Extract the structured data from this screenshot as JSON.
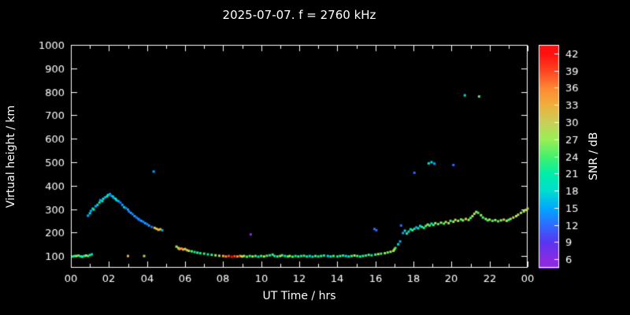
{
  "chart_data": {
    "type": "scatter",
    "title": "2025-07-07. f = 2760 kHz",
    "xlabel": "UT Time / hrs",
    "ylabel": "Virtual height / km",
    "xlim": [
      0,
      24
    ],
    "ylim": [
      50,
      1000
    ],
    "x_tick_values": [
      0,
      2,
      4,
      6,
      8,
      10,
      12,
      14,
      16,
      18,
      20,
      22,
      24
    ],
    "x_tick_labels": [
      "00",
      "02",
      "04",
      "06",
      "08",
      "10",
      "12",
      "14",
      "16",
      "18",
      "20",
      "22",
      "00"
    ],
    "y_ticks": [
      100,
      200,
      300,
      400,
      500,
      600,
      700,
      800,
      900,
      1000
    ],
    "grid": false,
    "legend": "none",
    "bg": "#000000",
    "fg": "#ffffff",
    "colorbar": {
      "label": "SNR / dB",
      "ticks": [
        6,
        9,
        12,
        15,
        18,
        21,
        24,
        27,
        30,
        33,
        36,
        39,
        42
      ],
      "range": [
        4.5,
        43.5
      ],
      "stops": [
        [
          6,
          "#8a2be2"
        ],
        [
          9,
          "#5a35f2"
        ],
        [
          12,
          "#2e6bff"
        ],
        [
          15,
          "#00a8ff"
        ],
        [
          18,
          "#00ddd0"
        ],
        [
          21,
          "#00eeaa"
        ],
        [
          24,
          "#44f06a"
        ],
        [
          27,
          "#9aef55"
        ],
        [
          30,
          "#c9cf5a"
        ],
        [
          33,
          "#efb03c"
        ],
        [
          36,
          "#ff8833"
        ],
        [
          39,
          "#ff4422"
        ],
        [
          42,
          "#ff1010"
        ]
      ]
    },
    "points_format": "[ut_hours, virtual_height_km, snr_db]",
    "points": [
      [
        0.1,
        98,
        21
      ],
      [
        0.2,
        100,
        24
      ],
      [
        0.3,
        100,
        27
      ],
      [
        0.4,
        102,
        24
      ],
      [
        0.5,
        99,
        21
      ],
      [
        0.6,
        97,
        24
      ],
      [
        0.7,
        100,
        21
      ],
      [
        0.8,
        102,
        27
      ],
      [
        0.9,
        100,
        24
      ],
      [
        1.0,
        104,
        21
      ],
      [
        1.1,
        107,
        18
      ],
      [
        0.9,
        272,
        15
      ],
      [
        1.0,
        282,
        18
      ],
      [
        1.05,
        292,
        15
      ],
      [
        1.15,
        302,
        18
      ],
      [
        1.2,
        298,
        21
      ],
      [
        1.3,
        312,
        15
      ],
      [
        1.4,
        318,
        18
      ],
      [
        1.5,
        328,
        21
      ],
      [
        1.55,
        338,
        15
      ],
      [
        1.65,
        334,
        18
      ],
      [
        1.7,
        344,
        21
      ],
      [
        1.8,
        350,
        15
      ],
      [
        1.9,
        354,
        18
      ],
      [
        1.95,
        360,
        21
      ],
      [
        2.05,
        364,
        15
      ],
      [
        2.1,
        358,
        12
      ],
      [
        2.2,
        354,
        18
      ],
      [
        2.25,
        348,
        15
      ],
      [
        2.35,
        344,
        21
      ],
      [
        2.4,
        338,
        18
      ],
      [
        2.5,
        334,
        15
      ],
      [
        2.6,
        328,
        12
      ],
      [
        2.7,
        318,
        15
      ],
      [
        2.8,
        308,
        18
      ],
      [
        2.9,
        304,
        12
      ],
      [
        3.0,
        298,
        15
      ],
      [
        3.05,
        290,
        12
      ],
      [
        3.15,
        284,
        15
      ],
      [
        3.25,
        278,
        12
      ],
      [
        3.35,
        270,
        15
      ],
      [
        3.45,
        264,
        12
      ],
      [
        3.55,
        258,
        15
      ],
      [
        3.6,
        254,
        12
      ],
      [
        3.7,
        250,
        15
      ],
      [
        3.8,
        246,
        12
      ],
      [
        3.9,
        240,
        15
      ],
      [
        4.0,
        236,
        12
      ],
      [
        4.1,
        230,
        15
      ],
      [
        4.25,
        224,
        12
      ],
      [
        4.4,
        220,
        30
      ],
      [
        4.5,
        216,
        33
      ],
      [
        4.6,
        212,
        30
      ],
      [
        4.7,
        214,
        33
      ],
      [
        4.8,
        210,
        15
      ],
      [
        4.35,
        460,
        15
      ],
      [
        3.0,
        100,
        33
      ],
      [
        3.85,
        100,
        30
      ],
      [
        5.55,
        140,
        27
      ],
      [
        5.65,
        134,
        30
      ],
      [
        5.7,
        130,
        33
      ],
      [
        5.8,
        132,
        36
      ],
      [
        5.9,
        128,
        33
      ],
      [
        6.0,
        130,
        30
      ],
      [
        6.1,
        125,
        33
      ],
      [
        6.2,
        122,
        27
      ],
      [
        6.35,
        120,
        24
      ],
      [
        6.5,
        117,
        21
      ],
      [
        6.65,
        114,
        24
      ],
      [
        6.8,
        112,
        21
      ],
      [
        7.0,
        110,
        24
      ],
      [
        7.2,
        107,
        21
      ],
      [
        7.4,
        105,
        24
      ],
      [
        7.6,
        103,
        27
      ],
      [
        7.8,
        101,
        30
      ],
      [
        8.0,
        100,
        33
      ],
      [
        8.15,
        98,
        36
      ],
      [
        8.3,
        100,
        39
      ],
      [
        8.45,
        97,
        42
      ],
      [
        8.6,
        99,
        39
      ],
      [
        8.75,
        98,
        36
      ],
      [
        8.9,
        100,
        33
      ],
      [
        9.0,
        98,
        30
      ],
      [
        9.1,
        100,
        27
      ],
      [
        9.25,
        97,
        24
      ],
      [
        9.4,
        100,
        24
      ],
      [
        9.45,
        192,
        6
      ],
      [
        9.55,
        98,
        27
      ],
      [
        9.7,
        100,
        24
      ],
      [
        9.85,
        97,
        21
      ],
      [
        10.0,
        100,
        24
      ],
      [
        10.15,
        98,
        27
      ],
      [
        10.3,
        101,
        24
      ],
      [
        10.45,
        103,
        21
      ],
      [
        10.6,
        106,
        24
      ],
      [
        10.7,
        100,
        21
      ],
      [
        10.85,
        98,
        24
      ],
      [
        11.0,
        100,
        27
      ],
      [
        11.1,
        103,
        24
      ],
      [
        11.25,
        100,
        21
      ],
      [
        11.4,
        98,
        24
      ],
      [
        11.5,
        100,
        27
      ],
      [
        11.65,
        97,
        24
      ],
      [
        11.8,
        100,
        21
      ],
      [
        11.95,
        98,
        24
      ],
      [
        12.1,
        100,
        21
      ],
      [
        12.25,
        101,
        24
      ],
      [
        12.4,
        98,
        21
      ],
      [
        12.55,
        100,
        18
      ],
      [
        12.7,
        97,
        21
      ],
      [
        12.85,
        100,
        24
      ],
      [
        13.0,
        98,
        21
      ],
      [
        13.15,
        100,
        24
      ],
      [
        13.3,
        102,
        21
      ],
      [
        13.5,
        100,
        18
      ],
      [
        13.65,
        98,
        21
      ],
      [
        13.8,
        100,
        24
      ],
      [
        14.0,
        98,
        21
      ],
      [
        14.15,
        100,
        24
      ],
      [
        14.3,
        102,
        21
      ],
      [
        14.45,
        100,
        18
      ],
      [
        14.6,
        98,
        21
      ],
      [
        14.75,
        100,
        24
      ],
      [
        14.9,
        102,
        27
      ],
      [
        15.05,
        100,
        24
      ],
      [
        15.2,
        98,
        21
      ],
      [
        15.35,
        100,
        24
      ],
      [
        15.5,
        102,
        21
      ],
      [
        15.65,
        105,
        24
      ],
      [
        15.8,
        103,
        21
      ],
      [
        15.95,
        215,
        12
      ],
      [
        16.05,
        210,
        12
      ],
      [
        16.0,
        106,
        24
      ],
      [
        16.15,
        108,
        27
      ],
      [
        16.3,
        110,
        24
      ],
      [
        16.5,
        112,
        27
      ],
      [
        16.65,
        115,
        24
      ],
      [
        16.8,
        118,
        27
      ],
      [
        16.95,
        122,
        30
      ],
      [
        17.0,
        128,
        27
      ],
      [
        17.05,
        134,
        24
      ],
      [
        17.2,
        150,
        18
      ],
      [
        17.3,
        162,
        15
      ],
      [
        17.35,
        230,
        12
      ],
      [
        17.45,
        198,
        15
      ],
      [
        17.55,
        208,
        18
      ],
      [
        17.65,
        196,
        21
      ],
      [
        17.75,
        204,
        18
      ],
      [
        17.85,
        214,
        21
      ],
      [
        17.95,
        210,
        24
      ],
      [
        18.05,
        455,
        12
      ],
      [
        18.05,
        216,
        18
      ],
      [
        18.15,
        222,
        15
      ],
      [
        18.25,
        218,
        21
      ],
      [
        18.35,
        228,
        18
      ],
      [
        18.45,
        224,
        24
      ],
      [
        18.55,
        220,
        21
      ],
      [
        18.65,
        228,
        24
      ],
      [
        18.75,
        234,
        27
      ],
      [
        18.8,
        495,
        18
      ],
      [
        18.85,
        230,
        24
      ],
      [
        18.95,
        500,
        18
      ],
      [
        18.95,
        238,
        21
      ],
      [
        19.05,
        232,
        24
      ],
      [
        19.1,
        494,
        15
      ],
      [
        19.15,
        240,
        27
      ],
      [
        19.3,
        236,
        24
      ],
      [
        19.45,
        242,
        27
      ],
      [
        19.6,
        238,
        24
      ],
      [
        19.7,
        245,
        30
      ],
      [
        19.85,
        240,
        27
      ],
      [
        19.95,
        250,
        24
      ],
      [
        20.1,
        488,
        12
      ],
      [
        20.1,
        246,
        27
      ],
      [
        20.2,
        254,
        30
      ],
      [
        20.35,
        250,
        27
      ],
      [
        20.5,
        256,
        24
      ],
      [
        20.6,
        252,
        27
      ],
      [
        20.7,
        785,
        18
      ],
      [
        20.75,
        258,
        30
      ],
      [
        20.9,
        254,
        27
      ],
      [
        21.0,
        262,
        24
      ],
      [
        21.1,
        270,
        27
      ],
      [
        21.2,
        280,
        30
      ],
      [
        21.3,
        288,
        27
      ],
      [
        21.4,
        284,
        24
      ],
      [
        21.45,
        780,
        24
      ],
      [
        21.55,
        274,
        27
      ],
      [
        21.65,
        264,
        24
      ],
      [
        21.8,
        258,
        27
      ],
      [
        21.9,
        252,
        24
      ],
      [
        22.0,
        255,
        27
      ],
      [
        22.15,
        250,
        24
      ],
      [
        22.3,
        253,
        27
      ],
      [
        22.45,
        248,
        24
      ],
      [
        22.6,
        252,
        27
      ],
      [
        22.75,
        255,
        30
      ],
      [
        22.9,
        250,
        27
      ],
      [
        23.0,
        254,
        24
      ],
      [
        23.1,
        258,
        27
      ],
      [
        23.25,
        264,
        30
      ],
      [
        23.4,
        270,
        27
      ],
      [
        23.5,
        276,
        30
      ],
      [
        23.65,
        284,
        27
      ],
      [
        23.8,
        290,
        30
      ],
      [
        23.9,
        296,
        27
      ],
      [
        24.0,
        302,
        30
      ]
    ]
  }
}
